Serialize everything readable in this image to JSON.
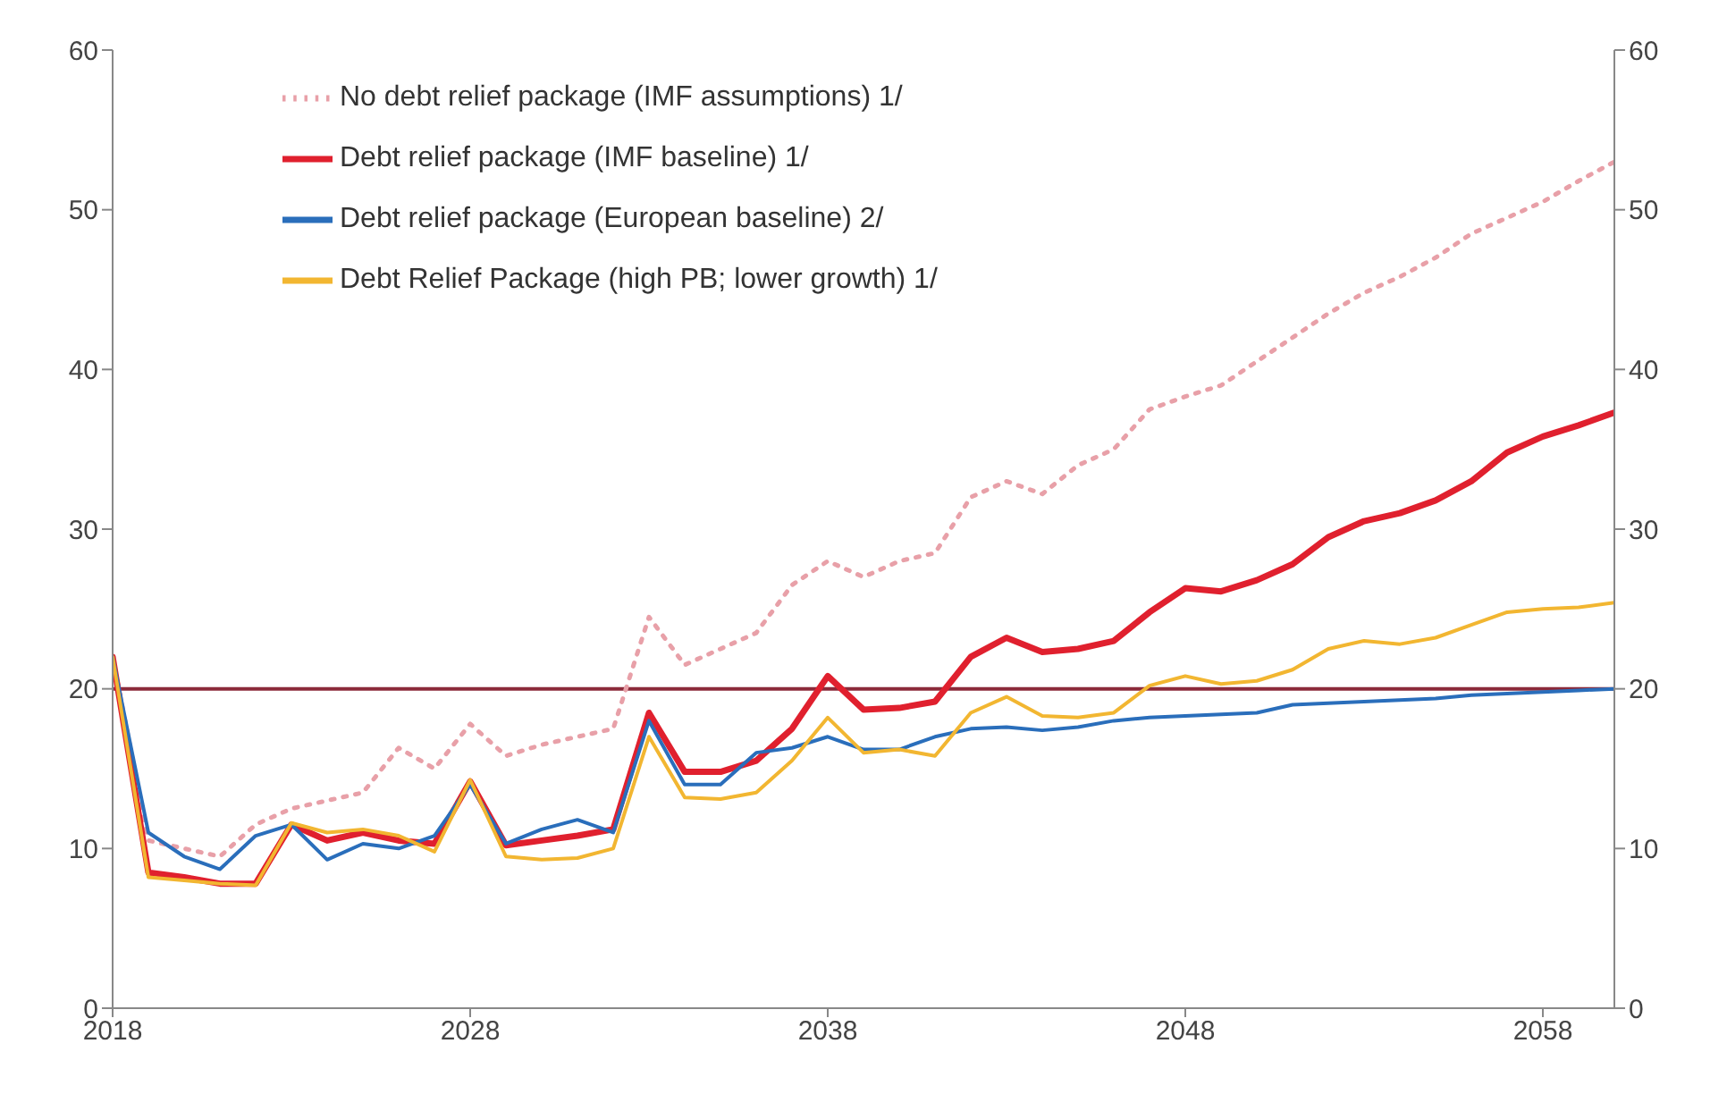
{
  "chart_data": {
    "type": "line",
    "x": [
      2018,
      2019,
      2020,
      2021,
      2022,
      2023,
      2024,
      2025,
      2026,
      2027,
      2028,
      2029,
      2030,
      2031,
      2032,
      2033,
      2034,
      2035,
      2036,
      2037,
      2038,
      2039,
      2040,
      2041,
      2042,
      2043,
      2044,
      2045,
      2046,
      2047,
      2048,
      2049,
      2050,
      2051,
      2052,
      2053,
      2054,
      2055,
      2056,
      2057,
      2058,
      2059,
      2060
    ],
    "series": [
      {
        "name": "No debt relief package (IMF assumptions) 1/",
        "color": "#e8a0a8",
        "line_style": "dotted",
        "values": [
          22,
          10.5,
          10,
          9.5,
          11.5,
          12.5,
          13,
          13.5,
          16.3,
          15,
          17.8,
          15.8,
          16.5,
          17,
          17.5,
          24.5,
          21.5,
          22.5,
          23.5,
          26.5,
          28,
          27,
          28,
          28.5,
          32,
          33,
          32.2,
          34,
          35,
          37.5,
          38.3,
          39,
          40.5,
          42,
          43.5,
          44.8,
          45.8,
          47,
          48.5,
          49.5,
          50.5,
          51.8,
          53
        ]
      },
      {
        "name": "Debt relief package (IMF baseline) 1/",
        "color": "#e0202e",
        "line_style": "solid",
        "values": [
          22,
          8.5,
          8.2,
          7.8,
          7.8,
          11.5,
          10.5,
          11,
          10.5,
          10.3,
          14.2,
          10.2,
          10.5,
          10.8,
          11.2,
          18.5,
          14.8,
          14.8,
          15.5,
          17.5,
          20.8,
          18.7,
          18.8,
          19.2,
          22,
          23.2,
          22.3,
          22.5,
          23,
          24.8,
          26.3,
          26.1,
          26.8,
          27.8,
          29.5,
          30.5,
          31,
          31.8,
          33,
          34.8,
          35.8,
          36.5,
          37.3
        ]
      },
      {
        "name": "Debt relief package (European baseline) 2/",
        "color": "#2a6ebb",
        "line_style": "solid",
        "values": [
          22,
          11,
          9.5,
          8.7,
          10.8,
          11.5,
          9.3,
          10.3,
          10,
          10.8,
          14,
          10.3,
          11.2,
          11.8,
          11,
          18,
          14,
          14,
          16,
          16.3,
          17,
          16.2,
          16.2,
          17,
          17.5,
          17.6,
          17.4,
          17.6,
          18,
          18.2,
          18.3,
          18.4,
          18.5,
          19,
          19.1,
          19.2,
          19.3,
          19.4,
          19.6,
          19.7,
          19.8,
          19.9,
          20
        ]
      },
      {
        "name": "Debt Relief Package (high PB; lower growth) 1/",
        "color": "#f2b631",
        "line_style": "solid",
        "values": [
          22,
          8.2,
          8,
          7.8,
          7.7,
          11.6,
          11,
          11.2,
          10.8,
          9.8,
          14.3,
          9.5,
          9.3,
          9.4,
          10,
          17,
          13.2,
          13.1,
          13.5,
          15.5,
          18.2,
          16,
          16.2,
          15.8,
          18.5,
          19.5,
          18.3,
          18.2,
          18.5,
          20.2,
          20.8,
          20.3,
          20.5,
          21.2,
          22.5,
          23,
          22.8,
          23.2,
          24,
          24.8,
          25,
          25.1,
          25.4
        ]
      }
    ],
    "xlim": [
      2018,
      2060
    ],
    "xticks": [
      2018,
      2028,
      2038,
      2048,
      2058
    ],
    "ylim": [
      0,
      60
    ],
    "yticks": [
      0,
      10,
      20,
      30,
      40,
      50,
      60
    ],
    "y2lim": [
      0,
      60
    ],
    "y2ticks": [
      0,
      10,
      20,
      30,
      40,
      50,
      60
    ],
    "ref_lines": [
      {
        "axis": "y",
        "value": 20,
        "color": "#8b2a3a",
        "line_style": "solid"
      }
    ],
    "legend": "top left",
    "grid": false,
    "marker": "none"
  }
}
